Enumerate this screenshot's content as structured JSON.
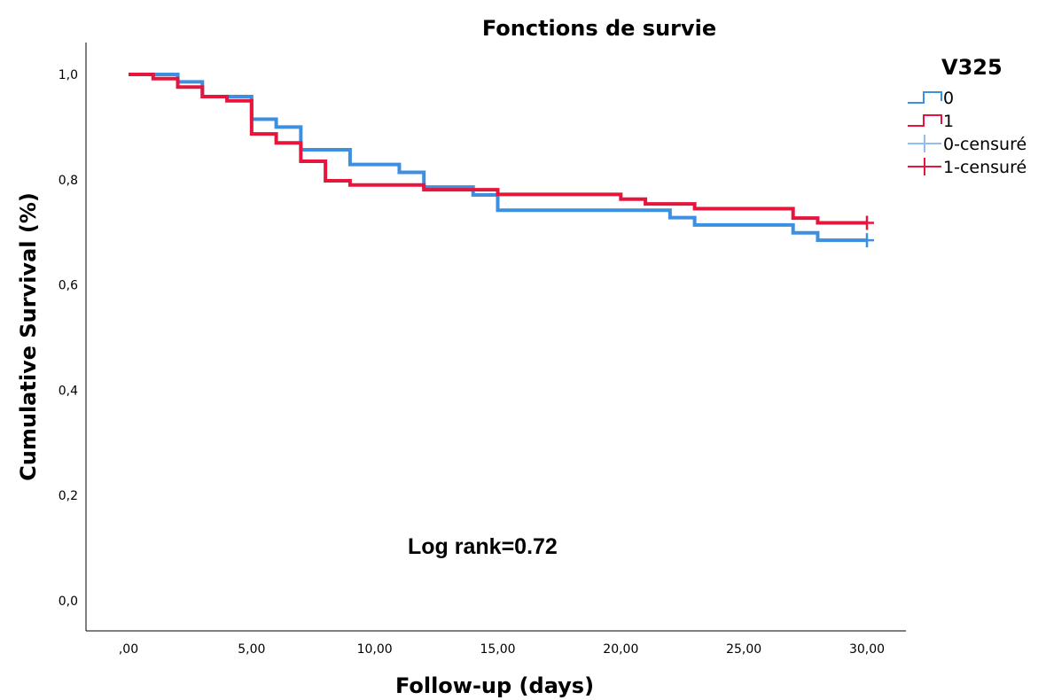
{
  "chart_data": {
    "type": "line",
    "step": true,
    "title": "Fonctions de survie",
    "xlabel": "Follow-up (days)",
    "ylabel": "Cumulative Survival (%)",
    "xlim": [
      0,
      30
    ],
    "ylim": [
      0,
      1
    ],
    "x_ticks": [
      0,
      5,
      10,
      15,
      20,
      25,
      30
    ],
    "x_tick_labels": [
      ",00",
      "5,00",
      "10,00",
      "15,00",
      "20,00",
      "25,00",
      "30,00"
    ],
    "y_ticks": [
      0,
      0.2,
      0.4,
      0.6,
      0.8,
      1.0
    ],
    "y_tick_labels": [
      "0,0",
      "0,2",
      "0,4",
      "0,6",
      "0,8",
      "1,0"
    ],
    "grid": false,
    "legend": {
      "title": "V325",
      "placement": "top-right",
      "entries": [
        {
          "label": "0",
          "series": 0,
          "kind": "step"
        },
        {
          "label": "1",
          "series": 1,
          "kind": "step"
        },
        {
          "label": "0-censuré",
          "series": 0,
          "kind": "censor"
        },
        {
          "label": "1-censuré",
          "series": 1,
          "kind": "censor"
        }
      ]
    },
    "annotation": "Log rank=0.72",
    "series": [
      {
        "color": "#3d8fe0",
        "censor_color": "#8fbff0",
        "points": [
          [
            0,
            1.0
          ],
          [
            2,
            0.986
          ],
          [
            3,
            0.958
          ],
          [
            5,
            0.915
          ],
          [
            6,
            0.9
          ],
          [
            7,
            0.857
          ],
          [
            9,
            0.829
          ],
          [
            11,
            0.814
          ],
          [
            12,
            0.786
          ],
          [
            14,
            0.771
          ],
          [
            15,
            0.742
          ],
          [
            22,
            0.728
          ],
          [
            23,
            0.714
          ],
          [
            27,
            0.699
          ],
          [
            28,
            0.685
          ],
          [
            30,
            0.685
          ]
        ],
        "censored": [
          [
            30,
            0.685
          ]
        ]
      },
      {
        "color": "#e5153c",
        "censor_color": "#e5153c",
        "points": [
          [
            0,
            1.0
          ],
          [
            1,
            0.992
          ],
          [
            2,
            0.976
          ],
          [
            3,
            0.958
          ],
          [
            4,
            0.95
          ],
          [
            5,
            0.887
          ],
          [
            6,
            0.87
          ],
          [
            7,
            0.835
          ],
          [
            8,
            0.798
          ],
          [
            9,
            0.79
          ],
          [
            12,
            0.781
          ],
          [
            15,
            0.772
          ],
          [
            20,
            0.763
          ],
          [
            21,
            0.754
          ],
          [
            23,
            0.745
          ],
          [
            27,
            0.727
          ],
          [
            28,
            0.718
          ],
          [
            30,
            0.718
          ]
        ],
        "censored": [
          [
            30,
            0.718
          ]
        ]
      }
    ]
  }
}
